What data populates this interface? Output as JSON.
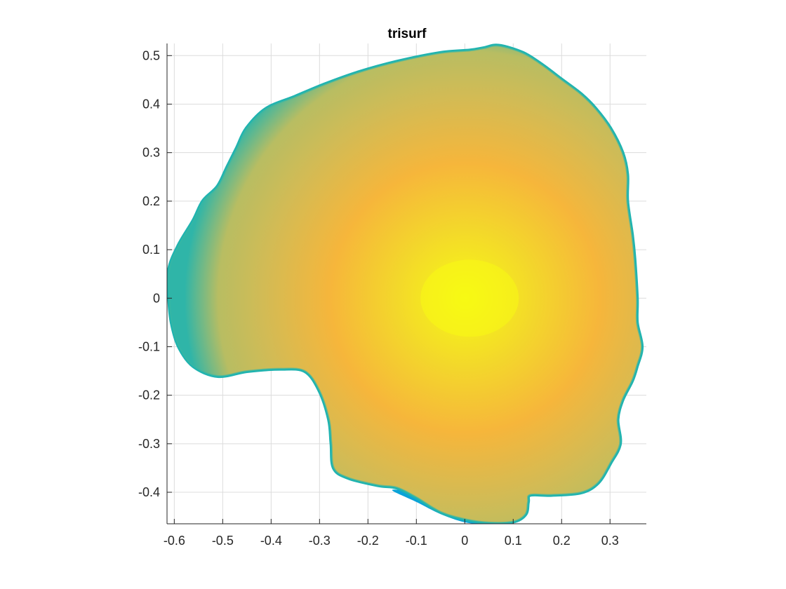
{
  "chart_data": {
    "type": "surface",
    "title": "trisurf",
    "xlabel": "",
    "ylabel": "",
    "xlim": [
      -0.615,
      0.375
    ],
    "ylim": [
      -0.465,
      0.525
    ],
    "grid": true,
    "x_ticks": [
      -0.6,
      -0.5,
      -0.4,
      -0.3,
      -0.2,
      -0.1,
      0,
      0.1,
      0.2,
      0.3
    ],
    "x_tick_labels": [
      "-0.6",
      "-0.5",
      "-0.4",
      "-0.3",
      "-0.2",
      "-0.1",
      "0",
      "0.1",
      "0.2",
      "0.3"
    ],
    "y_ticks": [
      -0.4,
      -0.3,
      -0.2,
      -0.1,
      0,
      0.1,
      0.2,
      0.3,
      0.4,
      0.5
    ],
    "y_tick_labels": [
      "-0.4",
      "-0.3",
      "-0.2",
      "-0.1",
      "0",
      "0.1",
      "0.2",
      "0.3",
      "0.4",
      "0.5"
    ],
    "colormap": "parula",
    "colors": {
      "edge": "#1fb3b0",
      "edge_blue": "#0aa2d8",
      "mid": "#c4bd5a",
      "orange": "#f6b63b",
      "center": "#f7fa14"
    },
    "outline": [
      [
        0.07,
        0.52
      ],
      [
        0.12,
        0.505
      ],
      [
        0.16,
        0.48
      ],
      [
        0.2,
        0.45
      ],
      [
        0.24,
        0.42
      ],
      [
        0.27,
        0.39
      ],
      [
        0.3,
        0.35
      ],
      [
        0.325,
        0.3
      ],
      [
        0.335,
        0.255
      ],
      [
        0.335,
        0.2
      ],
      [
        0.345,
        0.13
      ],
      [
        0.35,
        0.08
      ],
      [
        0.355,
        0.0
      ],
      [
        0.355,
        -0.05
      ],
      [
        0.365,
        -0.1
      ],
      [
        0.355,
        -0.14
      ],
      [
        0.345,
        -0.17
      ],
      [
        0.325,
        -0.21
      ],
      [
        0.315,
        -0.25
      ],
      [
        0.32,
        -0.3
      ],
      [
        0.3,
        -0.34
      ],
      [
        0.275,
        -0.38
      ],
      [
        0.24,
        -0.4
      ],
      [
        0.18,
        -0.405
      ],
      [
        0.135,
        -0.405
      ],
      [
        0.13,
        -0.42
      ],
      [
        0.125,
        -0.445
      ],
      [
        0.1,
        -0.46
      ],
      [
        0.05,
        -0.462
      ],
      [
        0.0,
        -0.455
      ],
      [
        -0.05,
        -0.44
      ],
      [
        -0.1,
        -0.41
      ],
      [
        -0.14,
        -0.39
      ],
      [
        -0.18,
        -0.385
      ],
      [
        -0.24,
        -0.37
      ],
      [
        -0.27,
        -0.35
      ],
      [
        -0.275,
        -0.3
      ],
      [
        -0.28,
        -0.25
      ],
      [
        -0.3,
        -0.19
      ],
      [
        -0.33,
        -0.15
      ],
      [
        -0.38,
        -0.145
      ],
      [
        -0.45,
        -0.15
      ],
      [
        -0.51,
        -0.16
      ],
      [
        -0.56,
        -0.14
      ],
      [
        -0.59,
        -0.1
      ],
      [
        -0.605,
        -0.05
      ],
      [
        -0.61,
        0.0
      ],
      [
        -0.61,
        0.06
      ],
      [
        -0.59,
        0.11
      ],
      [
        -0.56,
        0.16
      ],
      [
        -0.54,
        0.2
      ],
      [
        -0.51,
        0.23
      ],
      [
        -0.49,
        0.27
      ],
      [
        -0.47,
        0.31
      ],
      [
        -0.45,
        0.35
      ],
      [
        -0.41,
        0.39
      ],
      [
        -0.35,
        0.415
      ],
      [
        -0.29,
        0.44
      ],
      [
        -0.22,
        0.465
      ],
      [
        -0.14,
        0.487
      ],
      [
        -0.05,
        0.505
      ],
      [
        0.01,
        0.51
      ],
      [
        0.04,
        0.515
      ]
    ],
    "blue_lobe": [
      [
        -0.15,
        -0.395
      ],
      [
        -0.1,
        -0.42
      ],
      [
        -0.05,
        -0.445
      ],
      [
        0.0,
        -0.462
      ],
      [
        0.04,
        -0.465
      ],
      [
        0.08,
        -0.46
      ],
      [
        0.04,
        -0.44
      ],
      [
        -0.02,
        -0.425
      ],
      [
        -0.08,
        -0.405
      ]
    ],
    "brightest_point": [
      0.01,
      0.0
    ]
  }
}
